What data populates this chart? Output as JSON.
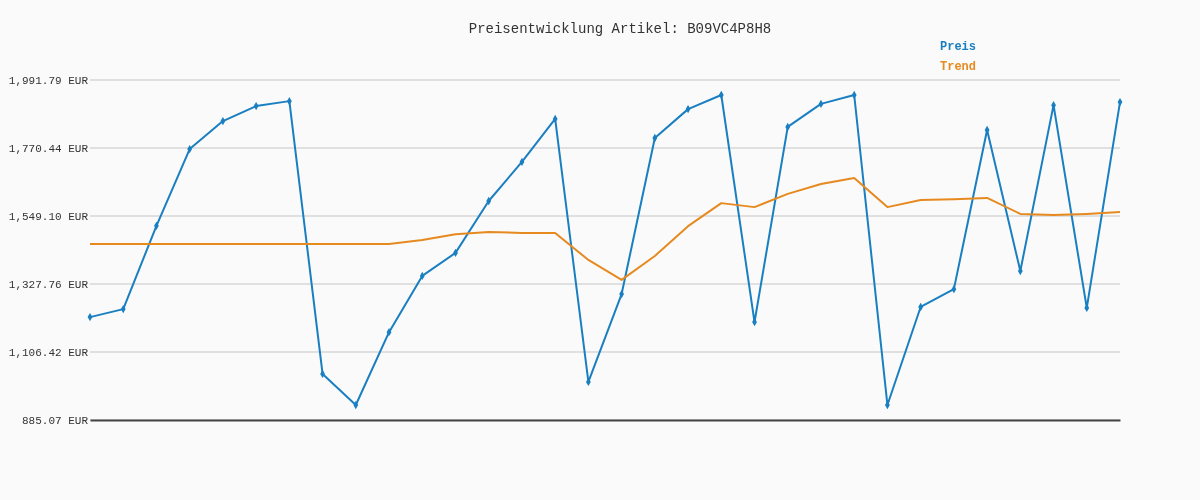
{
  "chart_data": {
    "type": "line",
    "title": "Preisentwicklung Artikel: B09VC4P8H8",
    "categories": [
      null,
      null,
      null,
      null,
      null,
      null,
      null,
      null,
      null,
      null,
      null,
      null,
      null,
      null,
      null,
      null,
      null,
      null,
      null,
      null,
      null,
      null,
      null,
      null,
      null,
      null,
      null,
      null,
      null,
      null,
      null,
      null
    ],
    "series": [
      {
        "name": "Preis",
        "color": "#1a7fc1",
        "marker": "diamond",
        "values": [
          1220,
          1246,
          1517,
          1767,
          1858,
          1907,
          1923,
          1035,
          934,
          1171,
          1354,
          1429,
          1598,
          1725,
          1865,
          1009,
          1295,
          1803,
          1897,
          1943,
          1204,
          1839,
          1914,
          1943,
          934,
          1253,
          1311,
          1829,
          1370,
          1910,
          1250,
          1920
        ]
      },
      {
        "name": "Trend",
        "color": "#e68a1f",
        "marker": "none",
        "values": [
          1458,
          1458,
          1458,
          1458,
          1458,
          1458,
          1458,
          1458,
          1458,
          1458,
          1471,
          1490,
          1497,
          1494,
          1494,
          1406,
          1341,
          1419,
          1516,
          1591,
          1578,
          1621,
          1653,
          1673,
          1578,
          1601,
          1604,
          1608,
          1556,
          1552,
          1556,
          1562
        ]
      }
    ],
    "ylim": [
      885.07,
      1991.79
    ],
    "yticks": [
      {
        "value": 885.07,
        "label": "885.07 EUR"
      },
      {
        "value": 1106.42,
        "label": "1,106.42 EUR"
      },
      {
        "value": 1327.76,
        "label": "1,327.76 EUR"
      },
      {
        "value": 1549.1,
        "label": "1,549.10 EUR"
      },
      {
        "value": 1770.44,
        "label": "1,770.44 EUR"
      },
      {
        "value": 1991.79,
        "label": "1,991.79 EUR"
      }
    ],
    "grid": "y",
    "legend": "top right",
    "line_style": "solid"
  }
}
